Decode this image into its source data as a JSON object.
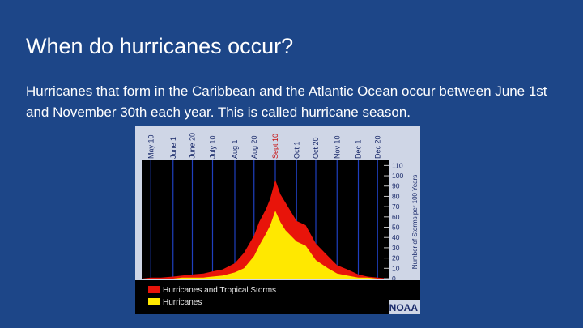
{
  "slide": {
    "title": "When do hurricanes occur?",
    "body": "Hurricanes that form in the Caribbean and the Atlantic Ocean occur between June 1st and November 30th each year. This is called hurricane season."
  },
  "chart_data": {
    "type": "area",
    "title": "",
    "xlabel": "",
    "ylabel": "Number of Storms per 100 Years",
    "ylim": [
      0,
      115
    ],
    "y_ticks": [
      0,
      10,
      20,
      30,
      40,
      50,
      60,
      70,
      80,
      90,
      100,
      110
    ],
    "date_ticks": [
      "May 10",
      "June 1",
      "June 20",
      "July 10",
      "Aug 1",
      "Aug 20",
      "Sept 10",
      "Oct 1",
      "Oct 20",
      "Nov 10",
      "Dec 1",
      "Dec 20"
    ],
    "highlight_tick": "Sept 10",
    "x": [
      "May 1",
      "May 10",
      "May 20",
      "June 1",
      "June 10",
      "June 20",
      "July 1",
      "July 10",
      "July 20",
      "Aug 1",
      "Aug 10",
      "Aug 20",
      "Aug 25",
      "Sept 1",
      "Sept 5",
      "Sept 10",
      "Sept 15",
      "Sept 20",
      "Oct 1",
      "Oct 10",
      "Oct 20",
      "Nov 1",
      "Nov 10",
      "Nov 20",
      "Dec 1",
      "Dec 10",
      "Dec 20",
      "Dec 31"
    ],
    "series": [
      {
        "name": "Hurricanes and Tropical Storms",
        "color": "#e8140a",
        "values": [
          0,
          1,
          1,
          2,
          3,
          4,
          5,
          7,
          9,
          15,
          25,
          42,
          55,
          68,
          78,
          96,
          82,
          74,
          56,
          52,
          34,
          22,
          13,
          9,
          4,
          2,
          1,
          0
        ]
      },
      {
        "name": "Hurricanes",
        "color": "#ffe800",
        "values": [
          0,
          0,
          0,
          0,
          1,
          1,
          1,
          2,
          3,
          6,
          10,
          22,
          32,
          44,
          52,
          66,
          55,
          47,
          36,
          32,
          18,
          10,
          5,
          3,
          1,
          1,
          0,
          0
        ]
      }
    ],
    "legend_position": "bottom-left",
    "source": "NOAA",
    "colors": {
      "plot_bg": "#000000",
      "frame_bg": "#cfd6e6",
      "gridline": "#1f3fbf",
      "text": "#1a2a6a"
    }
  }
}
